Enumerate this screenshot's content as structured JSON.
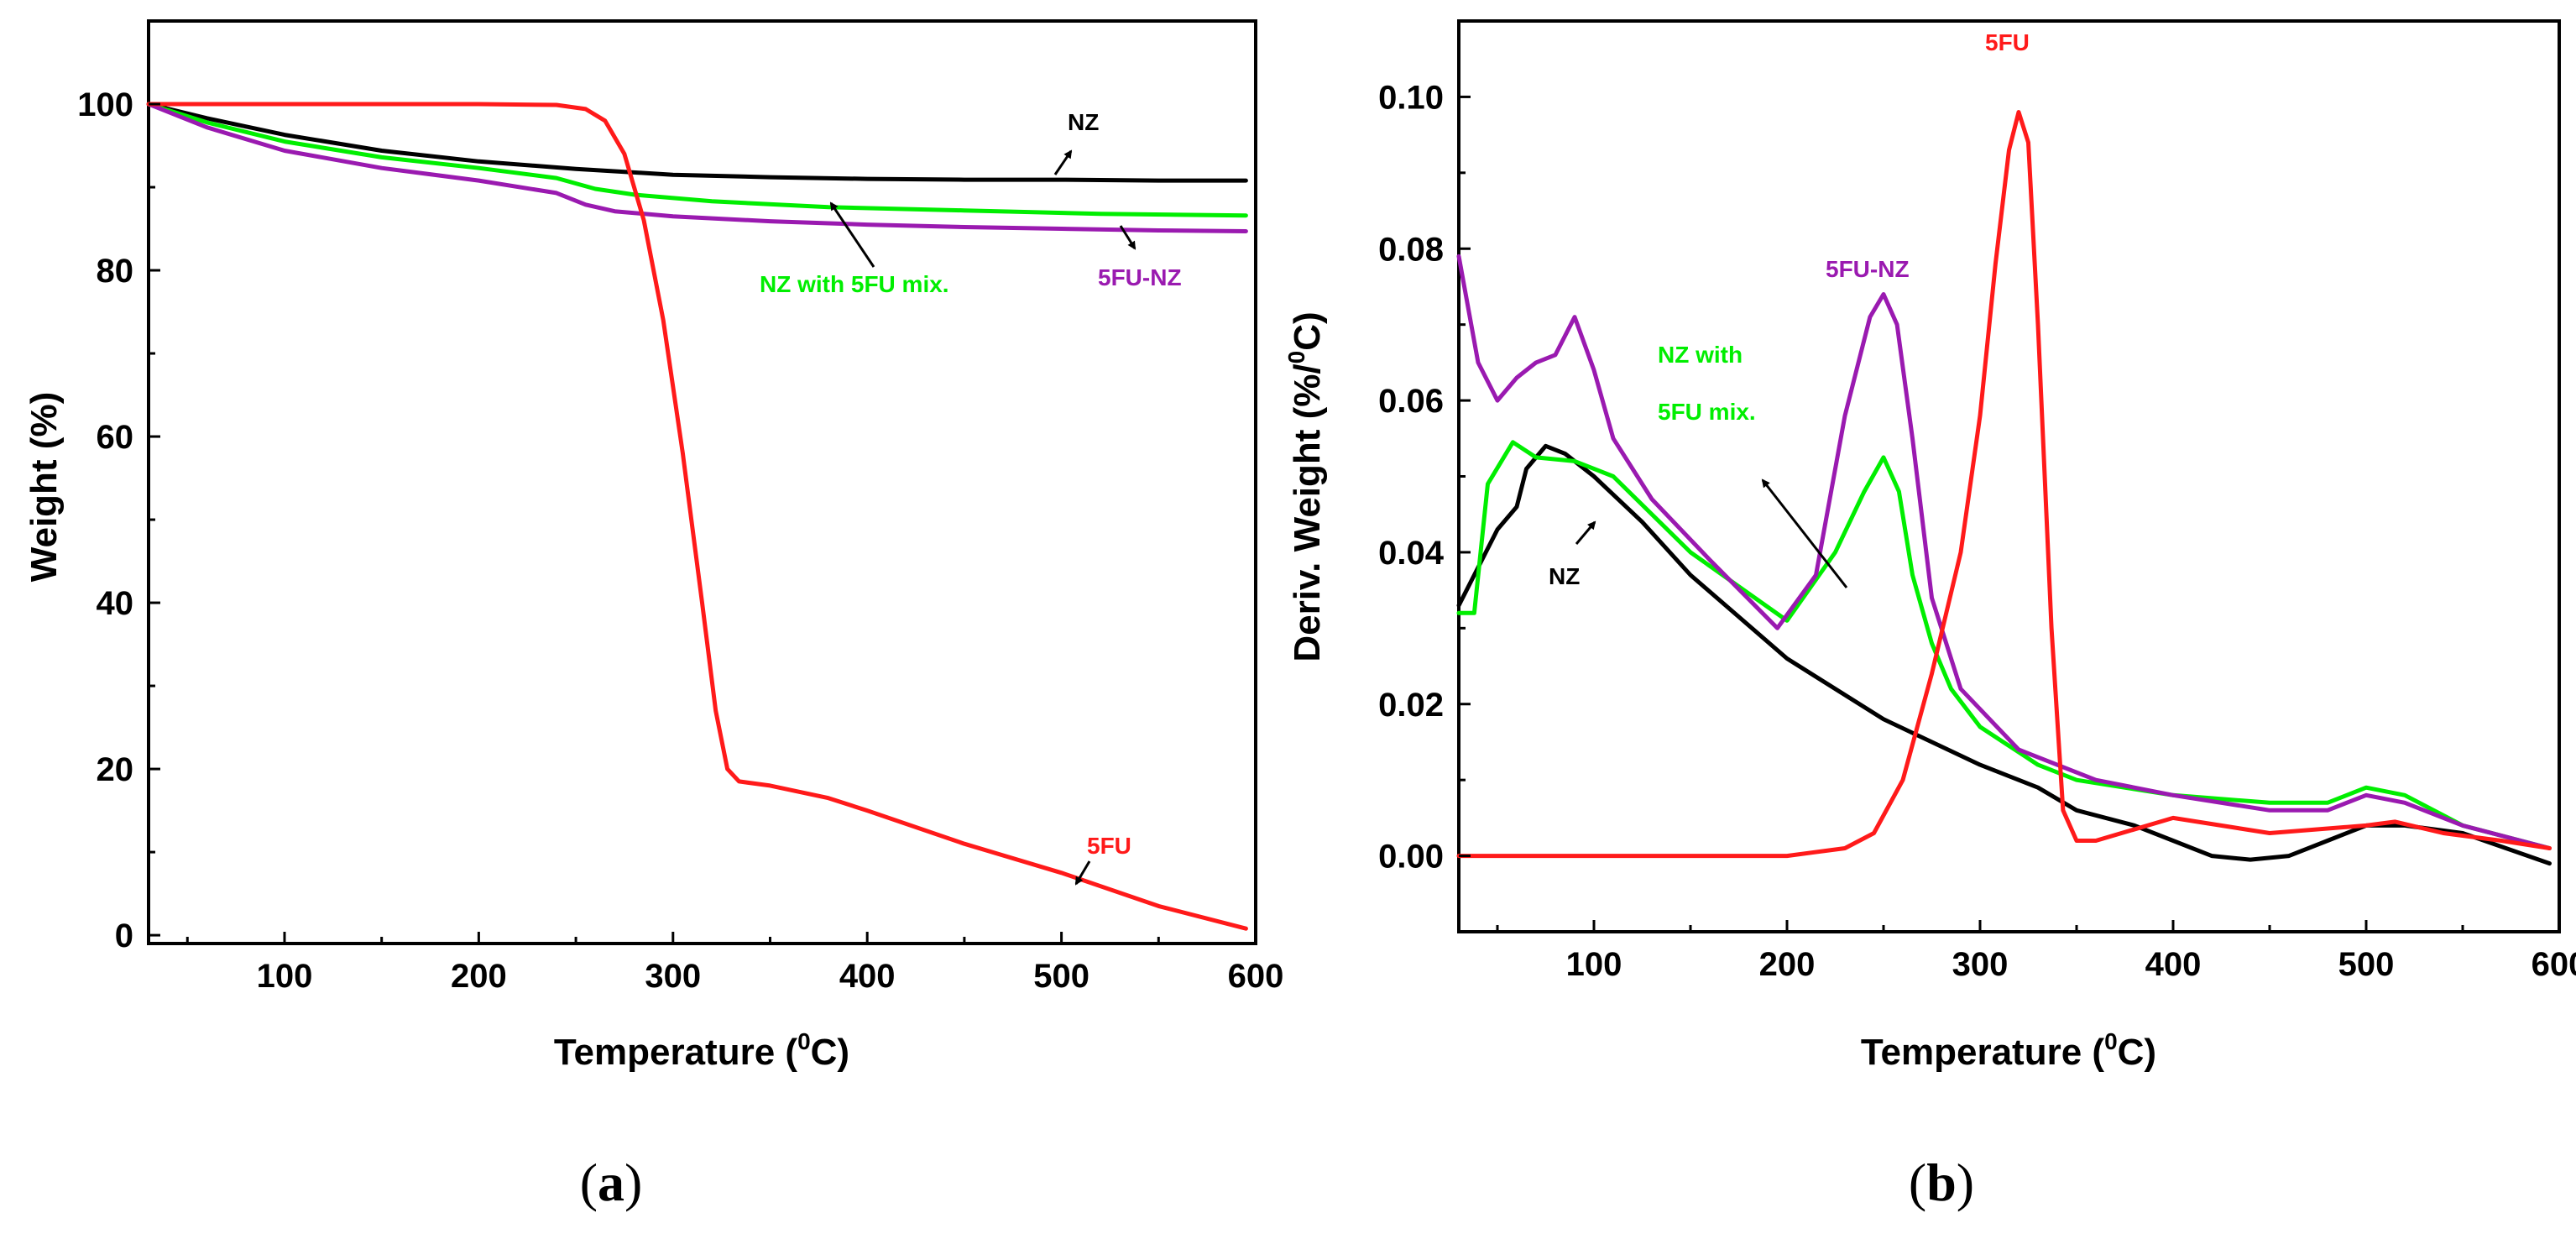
{
  "panels": {
    "a": {
      "label_open": "(",
      "label_letter": "a",
      "label_close": ")"
    },
    "b": {
      "label_open": "(",
      "label_letter": "b",
      "label_close": ")"
    }
  },
  "chart_data": [
    {
      "type": "line",
      "panel": "a",
      "title": "",
      "xlabel": "Temperature (",
      "xlabel_sup": "0",
      "xlabel_end": "C)",
      "ylabel": "Weight (%)",
      "xlim": [
        30,
        600
      ],
      "ylim": [
        -1,
        110
      ],
      "x_ticks": [
        100,
        200,
        300,
        400,
        500,
        600
      ],
      "y_ticks": [
        0,
        20,
        40,
        60,
        80,
        100
      ],
      "series": [
        {
          "name": "NZ",
          "color": "#000000",
          "x": [
            30,
            60,
            100,
            150,
            200,
            250,
            300,
            350,
            400,
            450,
            500,
            550,
            595
          ],
          "y": [
            100,
            98.3,
            96.3,
            94.4,
            93.1,
            92.2,
            91.5,
            91.2,
            91.0,
            90.9,
            90.9,
            90.8,
            90.8
          ]
        },
        {
          "name": "NZ with 5FU mix.",
          "color": "#00ee00",
          "x": [
            30,
            60,
            100,
            150,
            200,
            240,
            260,
            280,
            320,
            380,
            450,
            520,
            595
          ],
          "y": [
            100,
            97.8,
            95.5,
            93.6,
            92.3,
            91.1,
            89.8,
            89.1,
            88.3,
            87.6,
            87.2,
            86.8,
            86.6
          ]
        },
        {
          "name": "5FU-NZ",
          "color": "#9a1ab0",
          "x": [
            30,
            60,
            100,
            150,
            200,
            240,
            255,
            270,
            300,
            350,
            400,
            450,
            500,
            550,
            595
          ],
          "y": [
            100,
            97.2,
            94.4,
            92.3,
            90.8,
            89.3,
            87.9,
            87.1,
            86.5,
            85.9,
            85.5,
            85.2,
            85.0,
            84.8,
            84.7
          ]
        },
        {
          "name": "5FU",
          "color": "#ff1a1a",
          "x": [
            30,
            100,
            200,
            240,
            255,
            265,
            275,
            285,
            295,
            305,
            315,
            322,
            328,
            334,
            350,
            380,
            400,
            450,
            500,
            550,
            595
          ],
          "y": [
            100,
            100,
            100,
            99.9,
            99.4,
            98,
            94,
            86,
            74,
            58,
            40,
            27,
            20,
            18.5,
            18,
            16.5,
            15,
            11,
            7.5,
            3.5,
            0.8
          ]
        }
      ],
      "annotations": [
        {
          "text": "NZ",
          "color": "#000000"
        },
        {
          "text": "NZ with 5FU mix.",
          "color": "#00ee00"
        },
        {
          "text": "5FU-NZ",
          "color": "#9a1ab0"
        },
        {
          "text": "5FU",
          "color": "#ff1a1a"
        }
      ]
    },
    {
      "type": "line",
      "panel": "b",
      "title": "",
      "xlabel": "Temperature (",
      "xlabel_sup": "0",
      "xlabel_end": "C)",
      "ylabel": "Deriv. Weight (%/",
      "ylabel_sup": "0",
      "ylabel_end": "C)",
      "xlim": [
        30,
        600
      ],
      "ylim": [
        -0.01,
        0.11
      ],
      "x_ticks": [
        100,
        200,
        300,
        400,
        500,
        600
      ],
      "y_ticks": [
        0.0,
        0.02,
        0.04,
        0.06,
        0.08,
        0.1
      ],
      "y_tick_labels": [
        "0.00",
        "0.02",
        "0.04",
        "0.06",
        "0.08",
        "0.10"
      ],
      "series": [
        {
          "name": "NZ",
          "color": "#000000",
          "x": [
            30,
            40,
            50,
            60,
            65,
            75,
            85,
            100,
            125,
            150,
            200,
            250,
            300,
            330,
            350,
            380,
            400,
            420,
            440,
            460,
            480,
            500,
            520,
            550,
            595
          ],
          "y": [
            0.033,
            0.038,
            0.043,
            0.046,
            0.051,
            0.054,
            0.053,
            0.05,
            0.044,
            0.037,
            0.026,
            0.018,
            0.012,
            0.009,
            0.006,
            0.004,
            0.002,
            0.0,
            -0.0005,
            0.0,
            0.002,
            0.004,
            0.004,
            0.003,
            -0.001
          ]
        },
        {
          "name": "NZ with 5FU mix.",
          "color": "#00ee00",
          "x": [
            30,
            38,
            45,
            58,
            70,
            90,
            110,
            150,
            200,
            225,
            240,
            250,
            258,
            265,
            275,
            285,
            300,
            330,
            350,
            400,
            450,
            480,
            500,
            520,
            550,
            595
          ],
          "y": [
            0.032,
            0.032,
            0.049,
            0.0545,
            0.0525,
            0.052,
            0.05,
            0.04,
            0.031,
            0.04,
            0.048,
            0.0525,
            0.048,
            0.037,
            0.028,
            0.022,
            0.017,
            0.012,
            0.01,
            0.008,
            0.007,
            0.007,
            0.009,
            0.008,
            0.004,
            0.001
          ]
        },
        {
          "name": "5FU-NZ",
          "color": "#9a1ab0",
          "x": [
            30,
            40,
            50,
            60,
            70,
            80,
            90,
            100,
            110,
            130,
            160,
            195,
            215,
            230,
            243,
            250,
            257,
            265,
            275,
            290,
            320,
            360,
            400,
            450,
            480,
            500,
            520,
            550,
            595
          ],
          "y": [
            0.079,
            0.065,
            0.06,
            0.063,
            0.065,
            0.066,
            0.071,
            0.064,
            0.055,
            0.047,
            0.039,
            0.03,
            0.037,
            0.058,
            0.071,
            0.074,
            0.07,
            0.055,
            0.034,
            0.022,
            0.014,
            0.01,
            0.008,
            0.006,
            0.006,
            0.008,
            0.007,
            0.004,
            0.001
          ]
        },
        {
          "name": "5FU",
          "color": "#ff1a1a",
          "x": [
            30,
            100,
            200,
            230,
            245,
            260,
            275,
            290,
            300,
            308,
            315,
            320,
            325,
            330,
            337,
            343,
            350,
            360,
            400,
            450,
            500,
            515,
            540,
            570,
            595
          ],
          "y": [
            0.0,
            0.0,
            0.0,
            0.001,
            0.003,
            0.01,
            0.024,
            0.04,
            0.058,
            0.078,
            0.093,
            0.098,
            0.094,
            0.07,
            0.03,
            0.006,
            0.002,
            0.002,
            0.005,
            0.003,
            0.004,
            0.0045,
            0.003,
            0.002,
            0.001
          ]
        }
      ],
      "annotations": [
        {
          "text": "5FU",
          "color": "#ff1a1a"
        },
        {
          "text": "5FU-NZ",
          "color": "#9a1ab0"
        },
        {
          "text": "NZ with",
          "color": "#00ee00"
        },
        {
          "text": "5FU mix.",
          "color": "#00ee00"
        },
        {
          "text": "NZ",
          "color": "#000000"
        }
      ]
    }
  ]
}
